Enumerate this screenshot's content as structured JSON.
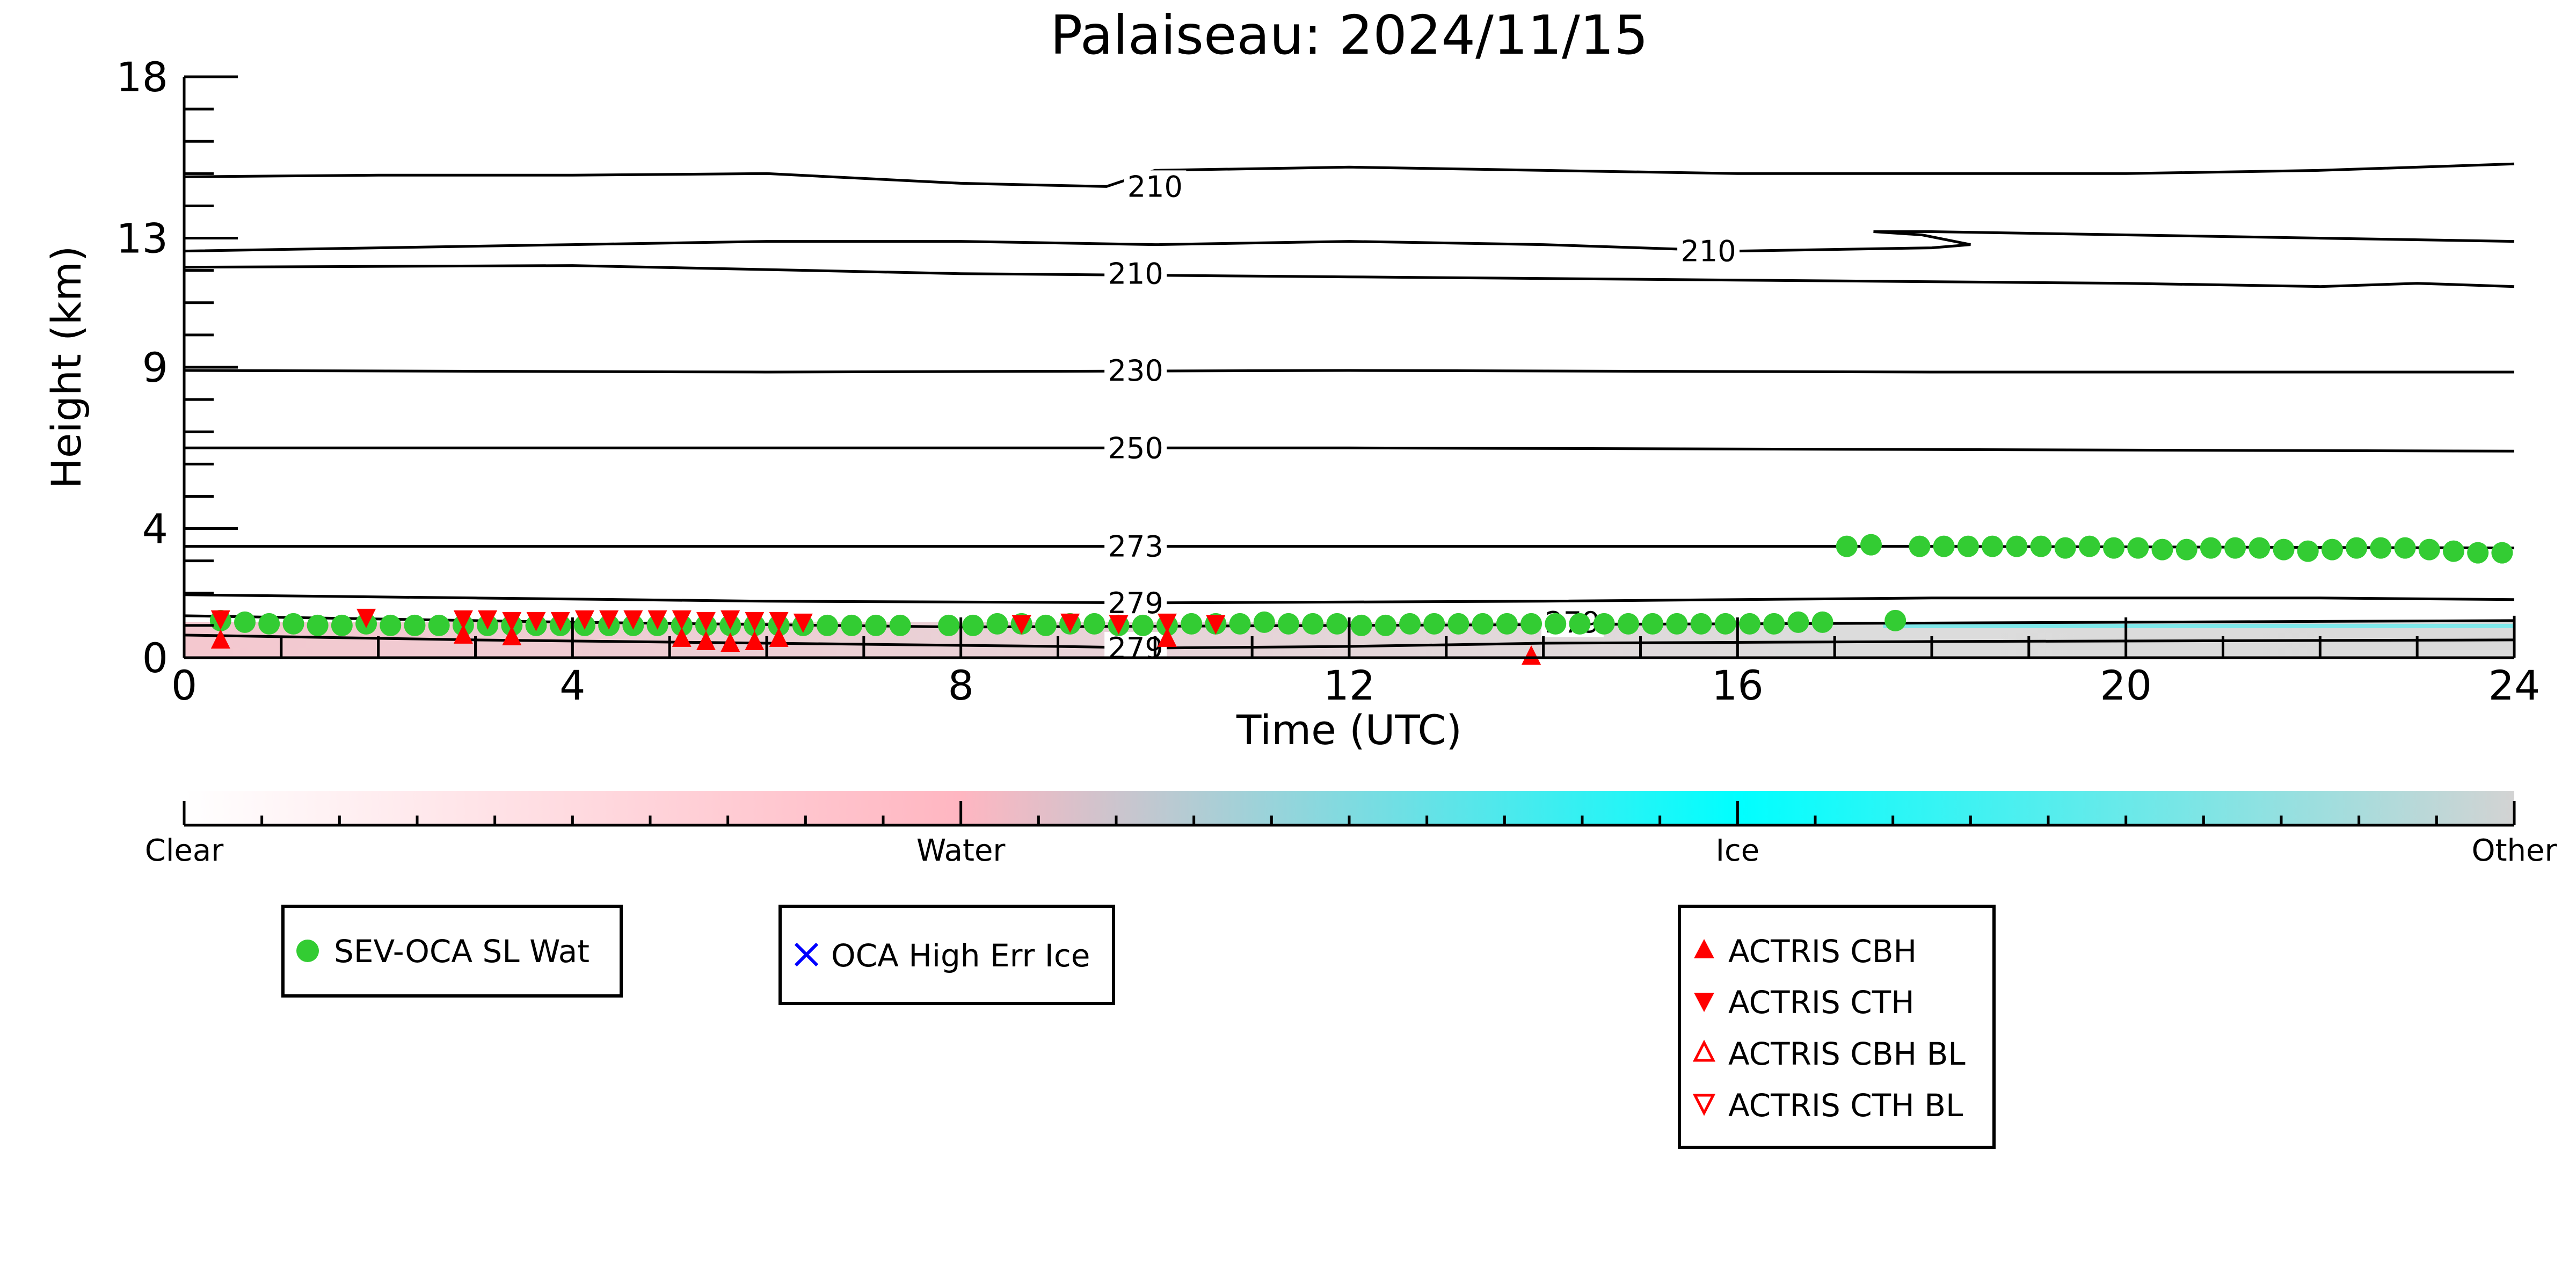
{
  "chart_data": {
    "type": "scatter",
    "title": "Palaiseau: 2024/11/15",
    "xlabel": "Time (UTC)",
    "ylabel": "Height (km)",
    "xlim": [
      0,
      24
    ],
    "ylim": [
      0,
      18
    ],
    "x_ticks": [
      0,
      4,
      8,
      12,
      16,
      20,
      24
    ],
    "y_ticks": [
      0,
      4,
      9,
      13,
      18
    ],
    "background_field": {
      "description_shown": "shaded phase field near surface",
      "colorbar": {
        "labels": [
          "Clear",
          "Water",
          "Ice",
          "Other"
        ],
        "colors": [
          "#ffffff",
          "#ffb6c1",
          "#00ffff",
          "#d3d3d3"
        ]
      }
    },
    "contours": [
      {
        "label": "210",
        "points": [
          [
            0,
            14.9
          ],
          [
            2,
            14.95
          ],
          [
            4,
            14.95
          ],
          [
            6,
            15.0
          ],
          [
            8,
            14.7
          ],
          [
            9.5,
            14.6
          ],
          [
            10,
            15.1
          ],
          [
            12,
            15.2
          ],
          [
            16,
            15.0
          ],
          [
            20,
            15.0
          ],
          [
            22,
            15.1
          ],
          [
            24,
            15.3
          ]
        ]
      },
      {
        "label": "210",
        "points": [
          [
            0,
            12.6
          ],
          [
            2,
            12.7
          ],
          [
            4,
            12.8
          ],
          [
            6,
            12.9
          ],
          [
            8,
            12.9
          ],
          [
            10,
            12.8
          ],
          [
            12,
            12.9
          ],
          [
            14,
            12.8
          ],
          [
            16,
            12.6
          ],
          [
            18,
            12.7
          ],
          [
            18.4,
            12.8
          ],
          [
            17.9,
            13.1
          ],
          [
            17.4,
            13.2
          ],
          [
            18,
            13.2
          ],
          [
            20,
            13.1
          ],
          [
            22,
            13.0
          ],
          [
            24,
            12.9
          ]
        ]
      },
      {
        "label": "210",
        "points": [
          [
            0,
            12.1
          ],
          [
            4,
            12.15
          ],
          [
            8,
            11.9
          ],
          [
            12,
            11.8
          ],
          [
            16,
            11.7
          ],
          [
            20,
            11.6
          ],
          [
            22,
            11.5
          ],
          [
            23,
            11.6
          ],
          [
            24,
            11.5
          ]
        ]
      },
      {
        "label": "230",
        "points": [
          [
            0,
            8.9
          ],
          [
            6,
            8.85
          ],
          [
            12,
            8.9
          ],
          [
            18,
            8.85
          ],
          [
            24,
            8.85
          ]
        ]
      },
      {
        "label": "250",
        "points": [
          [
            0,
            6.5
          ],
          [
            6,
            6.5
          ],
          [
            12,
            6.5
          ],
          [
            18,
            6.45
          ],
          [
            24,
            6.4
          ]
        ]
      },
      {
        "label": "273",
        "points": [
          [
            0,
            3.45
          ],
          [
            6,
            3.45
          ],
          [
            12,
            3.45
          ],
          [
            18,
            3.45
          ],
          [
            24,
            3.4
          ]
        ]
      },
      {
        "label": "279",
        "points": [
          [
            0,
            1.95
          ],
          [
            3,
            1.85
          ],
          [
            6,
            1.75
          ],
          [
            10,
            1.7
          ],
          [
            14,
            1.75
          ],
          [
            18,
            1.85
          ],
          [
            22,
            1.85
          ],
          [
            24,
            1.8
          ]
        ]
      },
      {
        "label": "279",
        "points": [
          [
            0,
            1.3
          ],
          [
            4,
            1.1
          ],
          [
            8,
            0.95
          ],
          [
            12,
            1.0
          ],
          [
            16,
            1.05
          ],
          [
            20,
            1.1
          ],
          [
            24,
            1.15
          ]
        ]
      },
      {
        "label": "279",
        "points": [
          [
            0,
            0.7
          ],
          [
            3,
            0.55
          ],
          [
            6,
            0.45
          ],
          [
            9,
            0.35
          ],
          [
            10,
            0.3
          ],
          [
            12,
            0.35
          ],
          [
            14,
            0.45
          ],
          [
            18,
            0.5
          ],
          [
            24,
            0.55
          ]
        ]
      }
    ],
    "series": [
      {
        "name": "SEV-OCA SL Wat",
        "marker": "filled-circle",
        "color": "#33cc33",
        "x": [
          0.375,
          0.625,
          0.875,
          1.125,
          1.375,
          1.625,
          1.875,
          2.125,
          2.375,
          2.625,
          2.875,
          3.125,
          3.375,
          3.625,
          3.875,
          4.125,
          4.375,
          4.625,
          4.875,
          5.125,
          5.375,
          5.625,
          5.875,
          6.125,
          6.375,
          6.625,
          6.875,
          7.125,
          7.375,
          7.875,
          8.125,
          8.375,
          8.625,
          8.875,
          9.125,
          9.375,
          9.625,
          9.875,
          10.125,
          10.375,
          10.625,
          10.875,
          11.125,
          11.375,
          11.625,
          11.875,
          12.125,
          12.375,
          12.625,
          12.875,
          13.125,
          13.375,
          13.625,
          13.875,
          14.125,
          14.375,
          14.625,
          14.875,
          15.125,
          15.375,
          15.625,
          15.875,
          16.125,
          16.375,
          16.625,
          16.875,
          17.125,
          17.375,
          17.625,
          17.875,
          18.125,
          18.375,
          18.625,
          18.875,
          19.125,
          19.375,
          19.625,
          19.875,
          20.125,
          20.375,
          20.625,
          20.875,
          21.125,
          21.375,
          21.625,
          21.875,
          22.125,
          22.375,
          22.625,
          22.875,
          23.125,
          23.375,
          23.625,
          23.875
        ],
        "y": [
          1.15,
          1.1,
          1.05,
          1.05,
          1.0,
          1.0,
          1.05,
          1.0,
          1.0,
          1.0,
          1.0,
          1.0,
          1.0,
          1.0,
          1.0,
          1.0,
          1.0,
          1.0,
          1.0,
          1.0,
          1.0,
          1.0,
          1.0,
          1.0,
          1.0,
          1.0,
          1.0,
          1.0,
          1.0,
          1.0,
          1.0,
          1.05,
          1.05,
          1.0,
          1.05,
          1.05,
          1.0,
          1.0,
          1.0,
          1.05,
          1.05,
          1.05,
          1.1,
          1.05,
          1.05,
          1.05,
          1.0,
          1.0,
          1.05,
          1.05,
          1.05,
          1.05,
          1.05,
          1.05,
          1.05,
          1.05,
          1.05,
          1.05,
          1.05,
          1.05,
          1.05,
          1.05,
          1.05,
          1.05,
          1.1,
          1.1,
          3.45,
          3.5,
          1.15,
          3.45,
          3.45,
          3.45,
          3.45,
          3.45,
          3.45,
          3.4,
          3.45,
          3.4,
          3.4,
          3.35,
          3.35,
          3.4,
          3.4,
          3.4,
          3.35,
          3.3,
          3.35,
          3.4,
          3.4,
          3.4,
          3.35,
          3.3,
          3.25,
          3.25
        ]
      },
      {
        "name": "OCA High Err Ice",
        "marker": "x",
        "color": "#0000ff",
        "x": [],
        "y": []
      },
      {
        "name": "ACTRIS CBH",
        "marker": "filled-triangle-up",
        "color": "#ff0000",
        "x": [
          0.375,
          2.875,
          3.375,
          5.125,
          5.375,
          5.625,
          5.875,
          6.125,
          10.125,
          13.875
        ],
        "y": [
          0.55,
          0.7,
          0.65,
          0.6,
          0.5,
          0.45,
          0.5,
          0.6,
          0.6,
          0.05
        ]
      },
      {
        "name": "ACTRIS CTH",
        "marker": "filled-triangle-down",
        "color": "#ff0000",
        "x": [
          0.375,
          1.875,
          2.875,
          3.125,
          3.375,
          3.625,
          3.875,
          4.125,
          4.375,
          4.625,
          4.875,
          5.125,
          5.375,
          5.625,
          5.875,
          6.125,
          6.375,
          8.625,
          9.125,
          9.625,
          10.125,
          10.625
        ],
        "y": [
          1.2,
          1.25,
          1.2,
          1.2,
          1.15,
          1.15,
          1.15,
          1.2,
          1.2,
          1.2,
          1.2,
          1.2,
          1.15,
          1.2,
          1.15,
          1.15,
          1.1,
          1.05,
          1.1,
          1.05,
          1.1,
          1.05
        ]
      },
      {
        "name": "ACTRIS CBH BL",
        "marker": "open-triangle-up",
        "color": "#ff0000",
        "x": [],
        "y": []
      },
      {
        "name": "ACTRIS CTH BL",
        "marker": "open-triangle-down",
        "color": "#ff0000",
        "x": [],
        "y": []
      }
    ],
    "contour_label_positions": [
      {
        "label": "210",
        "x": 10.0,
        "y": 14.6
      },
      {
        "label": "210",
        "x": 15.7,
        "y": 12.6
      },
      {
        "label": "210",
        "x": 9.8,
        "y": 11.9
      },
      {
        "label": "230",
        "x": 9.8,
        "y": 8.9
      },
      {
        "label": "250",
        "x": 9.8,
        "y": 6.5
      },
      {
        "label": "273",
        "x": 9.8,
        "y": 3.45
      },
      {
        "label": "279",
        "x": 9.8,
        "y": 1.7
      },
      {
        "label": "279",
        "x": 14.3,
        "y": 1.1
      },
      {
        "label": "279",
        "x": 9.8,
        "y": 0.3
      }
    ],
    "legends": [
      {
        "entries": [
          "SEV-OCA SL Wat"
        ]
      },
      {
        "entries": [
          "OCA High Err Ice"
        ]
      },
      {
        "entries": [
          "ACTRIS CBH",
          "ACTRIS CTH",
          "ACTRIS CBH BL",
          "ACTRIS CTH BL"
        ]
      }
    ],
    "grid": false
  }
}
